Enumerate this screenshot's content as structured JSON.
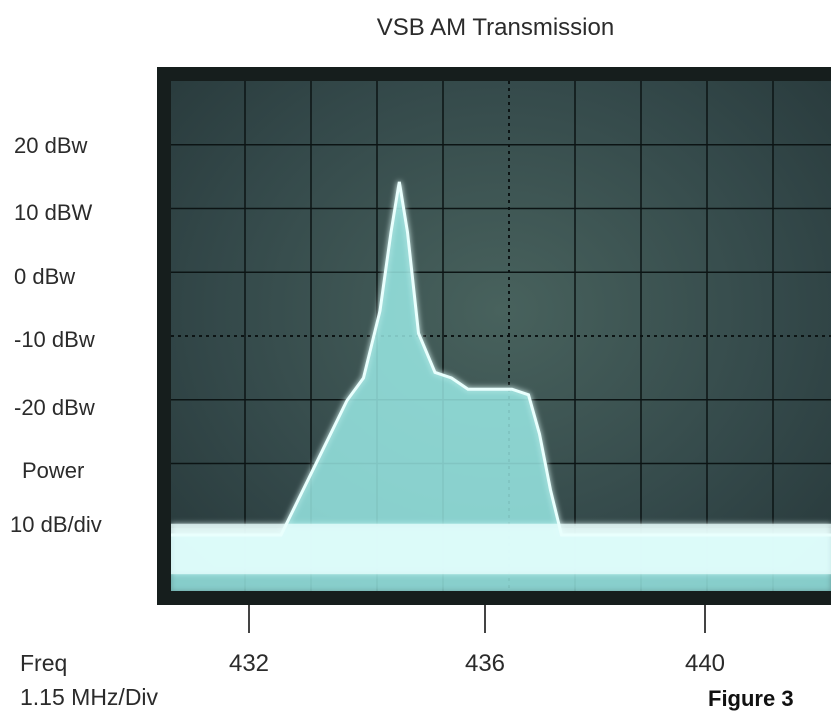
{
  "chart_data": {
    "type": "area",
    "title": "VSB AM Transmission",
    "ylabel": "Power",
    "ylabel_scale": "10 dB/div",
    "xlabel": "Freq",
    "xlabel_scale": "1.15 MHz/Div",
    "ytick_labels": [
      "20 dBw",
      "10 dBW",
      "0 dBw",
      "-10 dBw",
      "-20 dBw"
    ],
    "ytick_values": [
      20,
      10,
      0,
      -10,
      -20
    ],
    "xtick_labels": [
      "432",
      "436",
      "440"
    ],
    "xtick_values": [
      432,
      436,
      440
    ],
    "xlim": [
      430.2,
      442.2
    ],
    "ylim": [
      -56,
      35
    ],
    "grid": true,
    "series": [
      {
        "x": [
          430.2,
          432.2,
          432.6,
          433.0,
          433.4,
          433.7,
          434.0,
          434.2,
          434.35,
          434.5,
          434.7,
          435.0,
          435.3,
          435.6,
          436.0,
          436.4,
          436.7,
          436.9,
          437.1,
          437.3,
          437.6,
          438.0,
          442.2
        ],
        "y": [
          -46,
          -46,
          -38,
          -30,
          -22,
          -18,
          -6,
          8,
          17,
          8,
          -10,
          -17,
          -18,
          -20,
          -20,
          -20,
          -21,
          -28,
          -38,
          -46,
          -46,
          -46,
          -46
        ]
      }
    ]
  },
  "figure_label": "Figure 3",
  "colors": {
    "trace": "#9ff2ef",
    "trace_core": "#e9fffd",
    "grid": "#0c1414",
    "screen": "#3d5553"
  }
}
